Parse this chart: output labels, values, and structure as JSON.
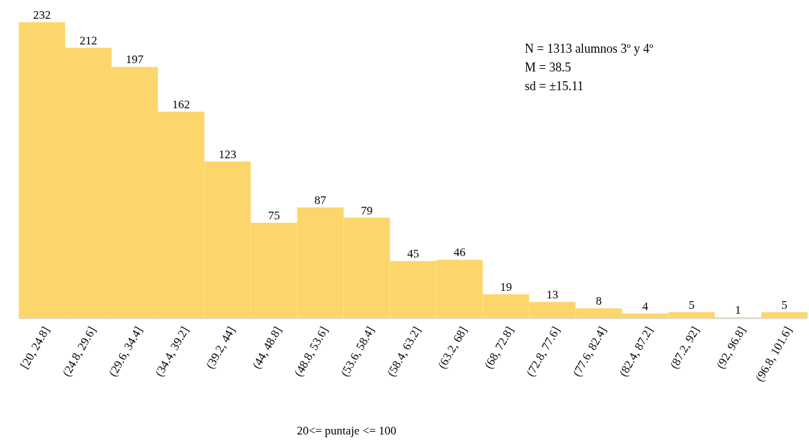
{
  "chart_data": {
    "type": "bar",
    "xlabel": "20<= puntaje <= 100",
    "categories": [
      "[20, 24.8]",
      "(24.8, 29.6]",
      "(29.6, 34.4]",
      "(34.4, 39.2]",
      "(39.2, 44]",
      "(44, 48.8]",
      "(48.8, 53.6]",
      "(53.6, 58.4]",
      "(58.4, 63.2]",
      "(63.2, 68]",
      "(68, 72.8]",
      "(72.8, 77.6]",
      "(77.6, 82.4]",
      "(82.4, 87.2]",
      "(87.2, 92]",
      "(92, 96.8]",
      "(96.8, 101.6]"
    ],
    "values": [
      232,
      212,
      197,
      162,
      123,
      75,
      87,
      79,
      45,
      46,
      19,
      13,
      8,
      4,
      5,
      1,
      5
    ],
    "color": "#fdd66b",
    "data_labels": true,
    "annotations": [
      "N = 1313 alumnos 3º y 4º",
      "M = 38.5",
      "sd = ±15.11"
    ]
  }
}
